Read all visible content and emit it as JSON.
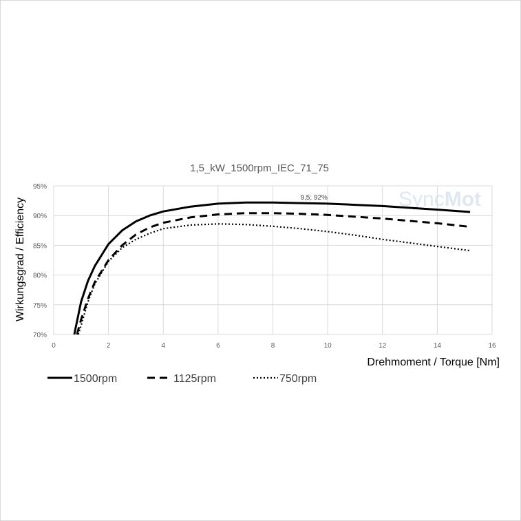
{
  "watermark": {
    "text_a": "Sync",
    "text_b": "Mot"
  },
  "chart_data": {
    "type": "line",
    "title": "1,5_kW_1500rpm_IEC_71_75",
    "xlabel": "Drehmoment / Torque [Nm]",
    "ylabel": "Wirkungsgrad / Efficiency",
    "xlim": [
      0,
      16
    ],
    "ylim": [
      70,
      95
    ],
    "xticks": [
      "0",
      "2",
      "4",
      "6",
      "8",
      "10",
      "12",
      "14",
      "16"
    ],
    "yticks": [
      "70%",
      "75%",
      "80%",
      "85%",
      "90%",
      "95%"
    ],
    "grid": true,
    "legend_position": "bottom-left",
    "annotation": {
      "text": "9,5; 92%",
      "x": 9.5,
      "y": 92.0
    },
    "series": [
      {
        "name": "1500rpm",
        "style": "solid",
        "x": [
          0.75,
          1.0,
          1.25,
          1.5,
          2.0,
          2.5,
          3.0,
          3.5,
          4.0,
          5.0,
          6.0,
          7.0,
          8.0,
          9.0,
          10.0,
          11.0,
          12.0,
          13.0,
          14.0,
          15.2
        ],
        "y": [
          70.0,
          75.5,
          79.0,
          81.5,
          85.2,
          87.5,
          89.0,
          90.0,
          90.7,
          91.5,
          92.0,
          92.2,
          92.2,
          92.1,
          92.0,
          91.8,
          91.6,
          91.3,
          91.0,
          90.6
        ]
      },
      {
        "name": "1125rpm",
        "style": "dashed",
        "x": [
          0.85,
          1.0,
          1.25,
          1.5,
          2.0,
          2.5,
          3.0,
          3.5,
          4.0,
          5.0,
          6.0,
          7.0,
          8.0,
          9.0,
          10.0,
          11.0,
          12.0,
          13.0,
          14.0,
          15.2
        ],
        "y": [
          70.0,
          72.5,
          76.0,
          78.8,
          82.5,
          85.0,
          86.8,
          88.0,
          88.8,
          89.7,
          90.2,
          90.4,
          90.4,
          90.3,
          90.1,
          89.8,
          89.5,
          89.1,
          88.7,
          88.1
        ]
      },
      {
        "name": "750rpm",
        "style": "dotted",
        "x": [
          0.9,
          1.0,
          1.25,
          1.5,
          2.0,
          2.5,
          3.0,
          3.5,
          4.0,
          5.0,
          6.0,
          7.0,
          8.0,
          9.0,
          10.0,
          11.0,
          12.0,
          13.0,
          14.0,
          15.2
        ],
        "y": [
          70.0,
          71.5,
          75.5,
          78.5,
          82.3,
          84.6,
          86.0,
          87.0,
          87.8,
          88.4,
          88.6,
          88.5,
          88.2,
          87.8,
          87.3,
          86.7,
          86.0,
          85.4,
          84.8,
          84.1
        ]
      }
    ]
  }
}
